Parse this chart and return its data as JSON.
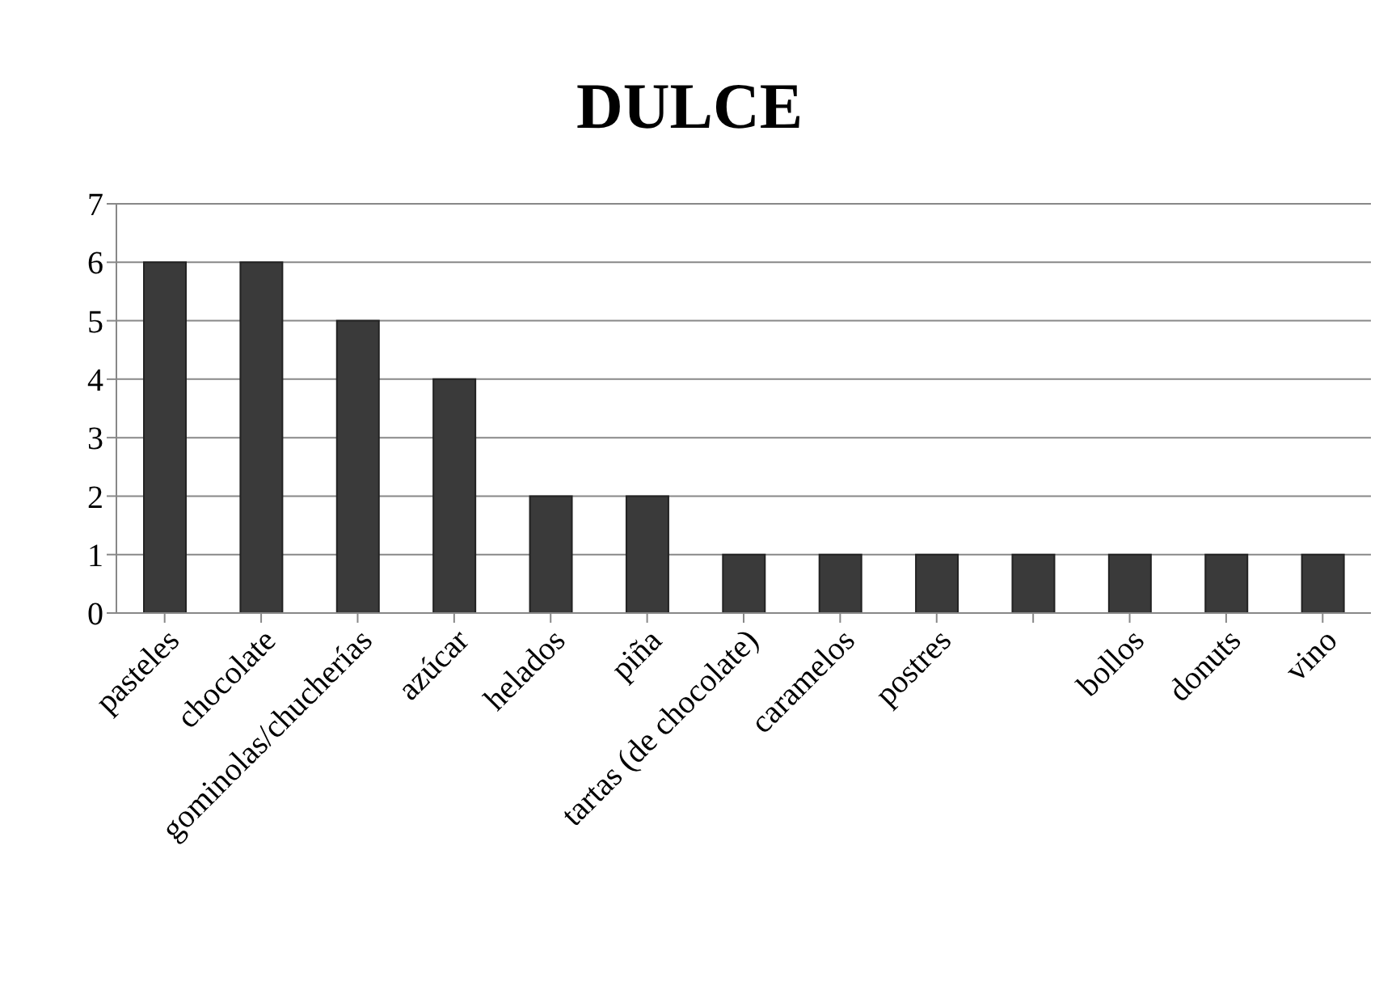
{
  "chart_data": {
    "type": "bar",
    "title": "DULCE",
    "categories": [
      "pasteles",
      "chocolate",
      "gominolas/chucherías",
      "azúcar",
      "helados",
      "piña",
      "tartas (de chocolate)",
      "caramelos",
      "postres",
      null,
      "bollos",
      "donuts",
      "vino"
    ],
    "values": [
      6,
      6,
      5,
      4,
      2,
      2,
      1,
      1,
      1,
      1,
      1,
      1,
      1
    ],
    "color": "#3a3a3a",
    "ylim": [
      0,
      7
    ],
    "yticks": [
      0,
      1,
      2,
      3,
      4,
      5,
      6,
      7
    ],
    "grid": "y"
  }
}
